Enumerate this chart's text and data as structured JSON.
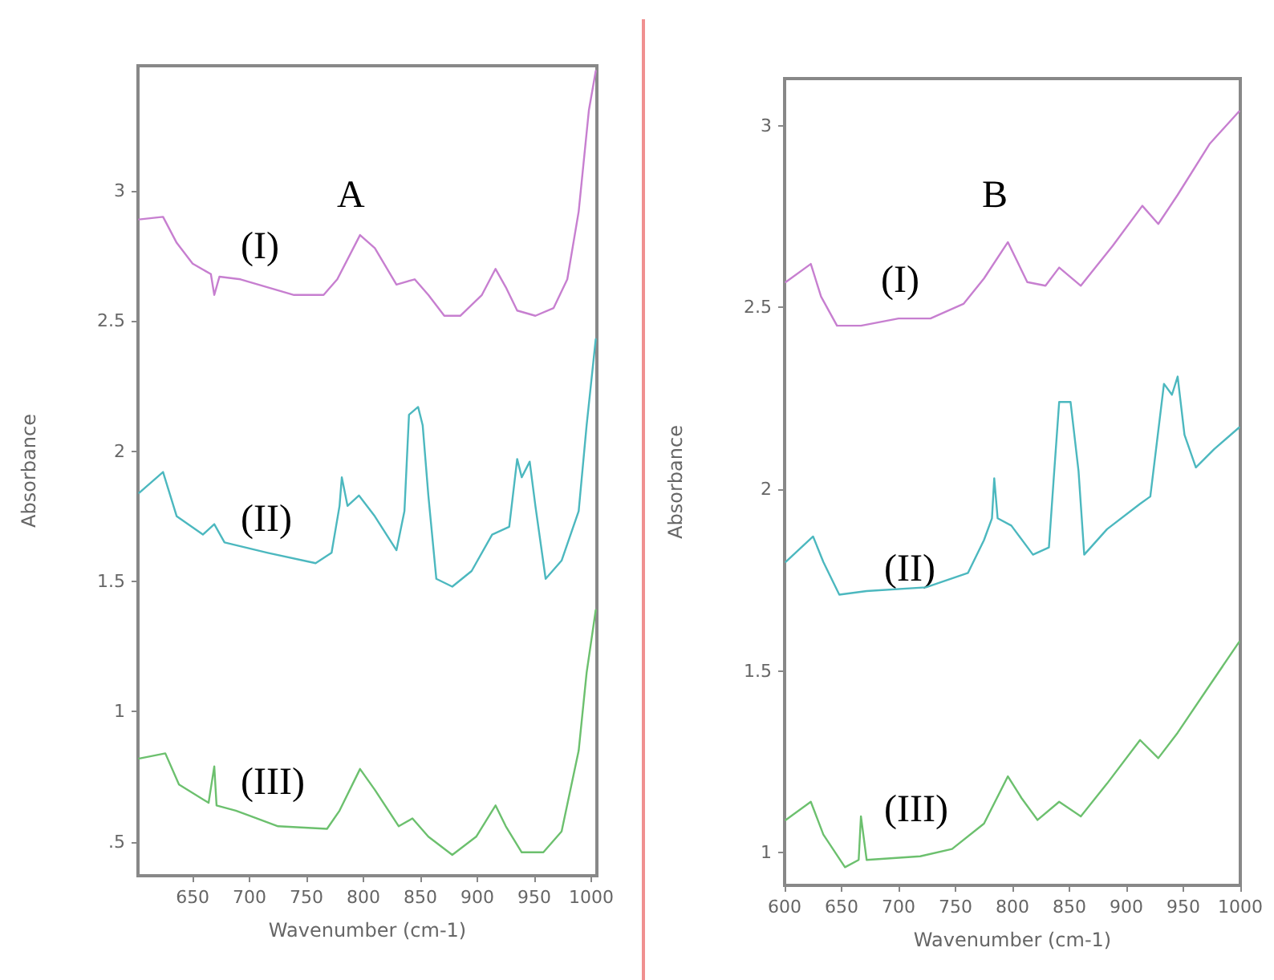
{
  "chart_data": [
    {
      "type": "line",
      "title": "A",
      "xlabel": "Wavenumber (cm-1)",
      "ylabel": "Absorbance",
      "xlim": [
        602,
        1005
      ],
      "xticks": [
        650,
        700,
        750,
        800,
        850,
        900,
        950,
        1000
      ],
      "ylim": [
        0.37,
        3.48
      ],
      "yticks": [
        {
          "value": 0.5,
          "label": ".5"
        },
        1,
        1.5,
        2,
        2.5,
        3
      ],
      "grid": false,
      "marker": "none",
      "line_style": "solid",
      "series": [
        {
          "name": "(I)",
          "color": "#c77fd0",
          "x": [
            603,
            624,
            636,
            650,
            666,
            669,
            673.5,
            692,
            739,
            765,
            777,
            797,
            810,
            829,
            845,
            857,
            871,
            885,
            904,
            916,
            925,
            935,
            951,
            967,
            979,
            989,
            998,
            1004
          ],
          "values": [
            2.89,
            2.9,
            2.8,
            2.72,
            2.68,
            2.6,
            2.67,
            2.66,
            2.6,
            2.6,
            2.66,
            2.83,
            2.78,
            2.64,
            2.66,
            2.6,
            2.52,
            2.52,
            2.6,
            2.7,
            2.63,
            2.54,
            2.52,
            2.55,
            2.66,
            2.92,
            3.31,
            3.46
          ]
        },
        {
          "name": "(II)",
          "color": "#4cb8bf",
          "x": [
            603,
            624,
            636,
            659,
            669,
            678,
            716,
            758,
            772,
            779,
            781,
            786,
            796,
            810,
            829,
            836,
            840,
            848,
            852,
            857,
            864,
            878,
            895,
            913,
            928,
            935,
            939,
            946,
            951,
            960,
            974,
            989,
            996,
            1004
          ],
          "values": [
            1.84,
            1.92,
            1.75,
            1.68,
            1.72,
            1.65,
            1.61,
            1.57,
            1.61,
            1.79,
            1.9,
            1.79,
            1.83,
            1.75,
            1.62,
            1.77,
            2.14,
            2.17,
            2.1,
            1.83,
            1.51,
            1.48,
            1.54,
            1.68,
            1.71,
            1.97,
            1.9,
            1.96,
            1.79,
            1.51,
            1.58,
            1.77,
            2.1,
            2.43
          ]
        },
        {
          "name": "(III)",
          "color": "#6cc06e",
          "x": [
            603,
            626,
            638,
            664,
            669,
            671,
            688,
            725,
            768,
            779,
            797,
            810,
            831,
            843,
            857,
            878,
            899,
            916,
            925,
            939,
            958,
            974,
            989,
            996,
            1004
          ],
          "values": [
            0.82,
            0.84,
            0.72,
            0.65,
            0.79,
            0.64,
            0.62,
            0.56,
            0.55,
            0.62,
            0.78,
            0.7,
            0.56,
            0.59,
            0.52,
            0.45,
            0.52,
            0.64,
            0.56,
            0.46,
            0.46,
            0.54,
            0.85,
            1.15,
            1.39
          ]
        }
      ]
    },
    {
      "type": "line",
      "title": "B",
      "xlabel": "Wavenumber (cm-1)",
      "ylabel": "Absorbance",
      "xlim": [
        600,
        1000
      ],
      "xticks": [
        600,
        650,
        700,
        750,
        800,
        850,
        900,
        950,
        1000
      ],
      "ylim": [
        0.91,
        3.13
      ],
      "yticks": [
        1,
        1.5,
        2,
        2.5,
        3
      ],
      "grid": false,
      "marker": "none",
      "line_style": "solid",
      "series": [
        {
          "name": "(I)",
          "color": "#c77fd0",
          "x": [
            601,
            623,
            632,
            646,
            667,
            700,
            728,
            757,
            775,
            796,
            813,
            829,
            841,
            860,
            888,
            914,
            928,
            945,
            973,
            999
          ],
          "values": [
            2.57,
            2.62,
            2.53,
            2.45,
            2.45,
            2.47,
            2.47,
            2.51,
            2.58,
            2.68,
            2.57,
            2.56,
            2.61,
            2.56,
            2.67,
            2.78,
            2.73,
            2.81,
            2.95,
            3.04
          ]
        },
        {
          "name": "(II)",
          "color": "#4cb8bf",
          "x": [
            601,
            625,
            634,
            648,
            672,
            724,
            761,
            775,
            782,
            784,
            787,
            799,
            818,
            832,
            836,
            841,
            851,
            858,
            863,
            883,
            912,
            921,
            933,
            940,
            945,
            951,
            961,
            977,
            999
          ],
          "values": [
            1.8,
            1.87,
            1.8,
            1.71,
            1.72,
            1.73,
            1.77,
            1.86,
            1.92,
            2.03,
            1.92,
            1.9,
            1.82,
            1.84,
            2.02,
            2.24,
            2.24,
            2.05,
            1.82,
            1.89,
            1.96,
            1.98,
            2.29,
            2.26,
            2.31,
            2.15,
            2.06,
            2.11,
            2.17
          ]
        },
        {
          "name": "(III)",
          "color": "#6cc06e",
          "x": [
            601,
            623,
            634,
            653,
            665,
            667,
            672,
            719,
            747,
            775,
            796,
            808,
            822,
            841,
            860,
            883,
            912,
            928,
            945,
            973,
            999
          ],
          "values": [
            1.09,
            1.14,
            1.05,
            0.96,
            0.98,
            1.1,
            0.98,
            0.99,
            1.01,
            1.08,
            1.21,
            1.15,
            1.09,
            1.14,
            1.1,
            1.19,
            1.31,
            1.26,
            1.33,
            1.46,
            1.58
          ]
        }
      ]
    }
  ]
}
